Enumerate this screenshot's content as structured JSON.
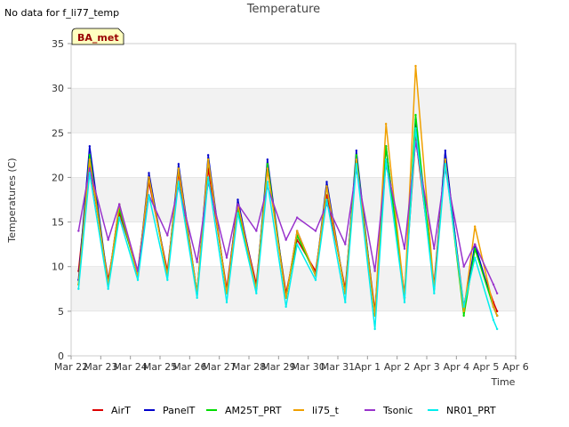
{
  "note": "No data for f_li77_temp",
  "badge": "BA_met",
  "colors": {
    "band": "#f2f2f2",
    "grid": "#dddddd",
    "badge_fill": "#ffffc0",
    "badge_text": "#990000"
  },
  "chart_data": {
    "type": "line",
    "title": "Temperature",
    "xlabel": "Time",
    "ylabel": "Temperatures (C)",
    "ylim": [
      0,
      35
    ],
    "yticks": [
      0,
      5,
      10,
      15,
      20,
      25,
      30,
      35
    ],
    "xlim_days": [
      0,
      15
    ],
    "xticks": [
      "Mar 22",
      "Mar 23",
      "Mar 24",
      "Mar 25",
      "Mar 26",
      "Mar 27",
      "Mar 28",
      "Mar 29",
      "Mar 30",
      "Mar 31",
      "Apr 1",
      "Apr 2",
      "Apr 3",
      "Apr 4",
      "Apr 5",
      "Apr 6"
    ],
    "grid": true,
    "legend_position": "bottom",
    "x": [
      "Mar 22 06:00",
      "Mar 22 15:00",
      "Mar 23 06:00",
      "Mar 23 15:00",
      "Mar 24 06:00",
      "Mar 24 15:00",
      "Mar 25 06:00",
      "Mar 25 15:00",
      "Mar 26 06:00",
      "Mar 26 15:00",
      "Mar 27 06:00",
      "Mar 27 15:00",
      "Mar 28 06:00",
      "Mar 28 15:00",
      "Mar 29 06:00",
      "Mar 29 15:00",
      "Mar 30 06:00",
      "Mar 30 15:00",
      "Mar 31 06:00",
      "Mar 31 15:00",
      "Apr 1 06:00",
      "Apr 1 15:00",
      "Apr 2 06:00",
      "Apr 2 15:00",
      "Apr 3 06:00",
      "Apr 3 15:00",
      "Apr 4 06:00",
      "Apr 4 15:00",
      "Apr 5 06:00",
      "Apr 5 09:00"
    ],
    "series": [
      {
        "name": "AirT",
        "color": "#dd0000",
        "values": [
          9.5,
          21.5,
          8.5,
          16.0,
          9.5,
          19.5,
          9.5,
          20.5,
          7.0,
          21.0,
          7.5,
          17.0,
          8.0,
          21.0,
          7.0,
          13.0,
          9.5,
          18.0,
          7.5,
          22.0,
          5.0,
          22.0,
          7.0,
          24.5,
          8.0,
          22.5,
          5.5,
          12.0,
          6.0,
          5.0
        ]
      },
      {
        "name": "PanelT",
        "color": "#0000cc",
        "values": [
          8.5,
          23.5,
          8.0,
          17.0,
          9.0,
          20.5,
          9.0,
          21.5,
          7.0,
          22.5,
          7.0,
          17.5,
          7.5,
          22.0,
          6.5,
          14.0,
          9.0,
          19.5,
          7.0,
          23.0,
          4.5,
          23.5,
          6.5,
          26.5,
          7.5,
          23.0,
          5.0,
          12.5,
          5.5,
          4.5
        ]
      },
      {
        "name": "AM25T_PRT",
        "color": "#00dd00",
        "values": [
          8.0,
          22.5,
          8.0,
          16.5,
          9.0,
          20.0,
          9.0,
          21.0,
          7.0,
          22.0,
          7.0,
          16.5,
          7.5,
          21.5,
          6.5,
          13.5,
          9.0,
          19.0,
          7.0,
          22.5,
          4.5,
          23.5,
          6.5,
          27.0,
          7.5,
          22.0,
          4.5,
          12.0,
          5.5,
          4.5
        ]
      },
      {
        "name": "li75_t",
        "color": "#f0a000",
        "values": [
          8.0,
          22.0,
          8.0,
          17.0,
          9.0,
          20.0,
          9.0,
          21.0,
          7.0,
          22.0,
          7.0,
          17.0,
          7.5,
          21.0,
          6.5,
          14.0,
          9.0,
          19.0,
          7.0,
          22.0,
          4.5,
          26.0,
          6.5,
          32.5,
          7.5,
          22.0,
          5.0,
          14.5,
          5.5,
          4.5
        ]
      },
      {
        "name": "Tsonic",
        "color": "#9933cc",
        "values": [
          14.0,
          21.0,
          13.0,
          17.0,
          9.5,
          18.0,
          13.5,
          19.0,
          10.5,
          19.5,
          11.0,
          17.0,
          14.0,
          19.0,
          13.0,
          15.5,
          14.0,
          17.0,
          12.5,
          21.0,
          9.5,
          21.5,
          12.0,
          24.0,
          12.0,
          21.0,
          10.0,
          12.5,
          8.0,
          7.0
        ]
      },
      {
        "name": "NR01_PRT",
        "color": "#00eeee",
        "values": [
          7.5,
          20.5,
          7.5,
          15.5,
          8.5,
          18.0,
          8.5,
          19.5,
          6.5,
          20.0,
          6.0,
          16.0,
          7.0,
          19.5,
          5.5,
          12.5,
          8.5,
          17.5,
          6.0,
          21.5,
          3.0,
          22.0,
          6.0,
          25.5,
          7.0,
          21.5,
          5.5,
          11.0,
          4.0,
          3.0
        ]
      }
    ]
  }
}
